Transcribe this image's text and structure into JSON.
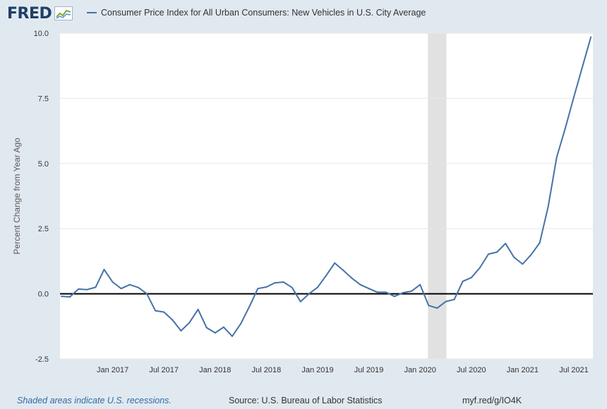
{
  "header": {
    "logo_text": "FRED"
  },
  "chart_data": {
    "type": "line",
    "title": "Consumer Price Index for All Urban Consumers: New Vehicles in U.S. City Average",
    "xlabel": "",
    "ylabel": "Percent Change from Year Ago",
    "ylim": [
      -2.5,
      10
    ],
    "yticks": [
      "-2.5",
      "0.0",
      "2.5",
      "5.0",
      "7.5",
      "10.0"
    ],
    "xticks": [
      {
        "label": "Jan 2017",
        "month": 6
      },
      {
        "label": "Jul 2017",
        "month": 12
      },
      {
        "label": "Jan 2018",
        "month": 18
      },
      {
        "label": "Jul 2018",
        "month": 24
      },
      {
        "label": "Jan 2019",
        "month": 30
      },
      {
        "label": "Jul 2019",
        "month": 36
      },
      {
        "label": "Jan 2020",
        "month": 42
      },
      {
        "label": "Jul 2020",
        "month": 48
      },
      {
        "label": "Jan 2021",
        "month": 54
      },
      {
        "label": "Jul 2021",
        "month": 60
      }
    ],
    "start": "Jul 2016",
    "end": "Oct 2021",
    "recession": {
      "start": "Feb 2020",
      "end": "Apr 2020"
    },
    "line_color": "#4572a7",
    "series": [
      {
        "name": "Consumer Price Index for All Urban Consumers: New Vehicles in U.S. City Average",
        "values": [
          -0.1,
          -0.12,
          0.18,
          0.16,
          0.25,
          0.93,
          0.45,
          0.2,
          0.35,
          0.24,
          0.0,
          -0.65,
          -0.7,
          -1.0,
          -1.42,
          -1.1,
          -0.6,
          -1.3,
          -1.5,
          -1.28,
          -1.63,
          -1.15,
          -0.5,
          0.2,
          0.26,
          0.42,
          0.45,
          0.24,
          -0.3,
          0.0,
          0.25,
          0.7,
          1.18,
          0.9,
          0.6,
          0.35,
          0.2,
          0.06,
          0.06,
          -0.1,
          0.04,
          0.1,
          0.35,
          -0.45,
          -0.55,
          -0.3,
          -0.22,
          0.48,
          0.62,
          1.0,
          1.52,
          1.6,
          1.93,
          1.4,
          1.14,
          1.5,
          1.95,
          3.35,
          5.25,
          6.35,
          7.55,
          8.7,
          9.85
        ]
      }
    ]
  },
  "footer": {
    "recession_note": "Shaded areas indicate U.S. recessions.",
    "source": "Source: U.S. Bureau of Labor Statistics",
    "short_url": "myf.red/g/IO4K"
  }
}
